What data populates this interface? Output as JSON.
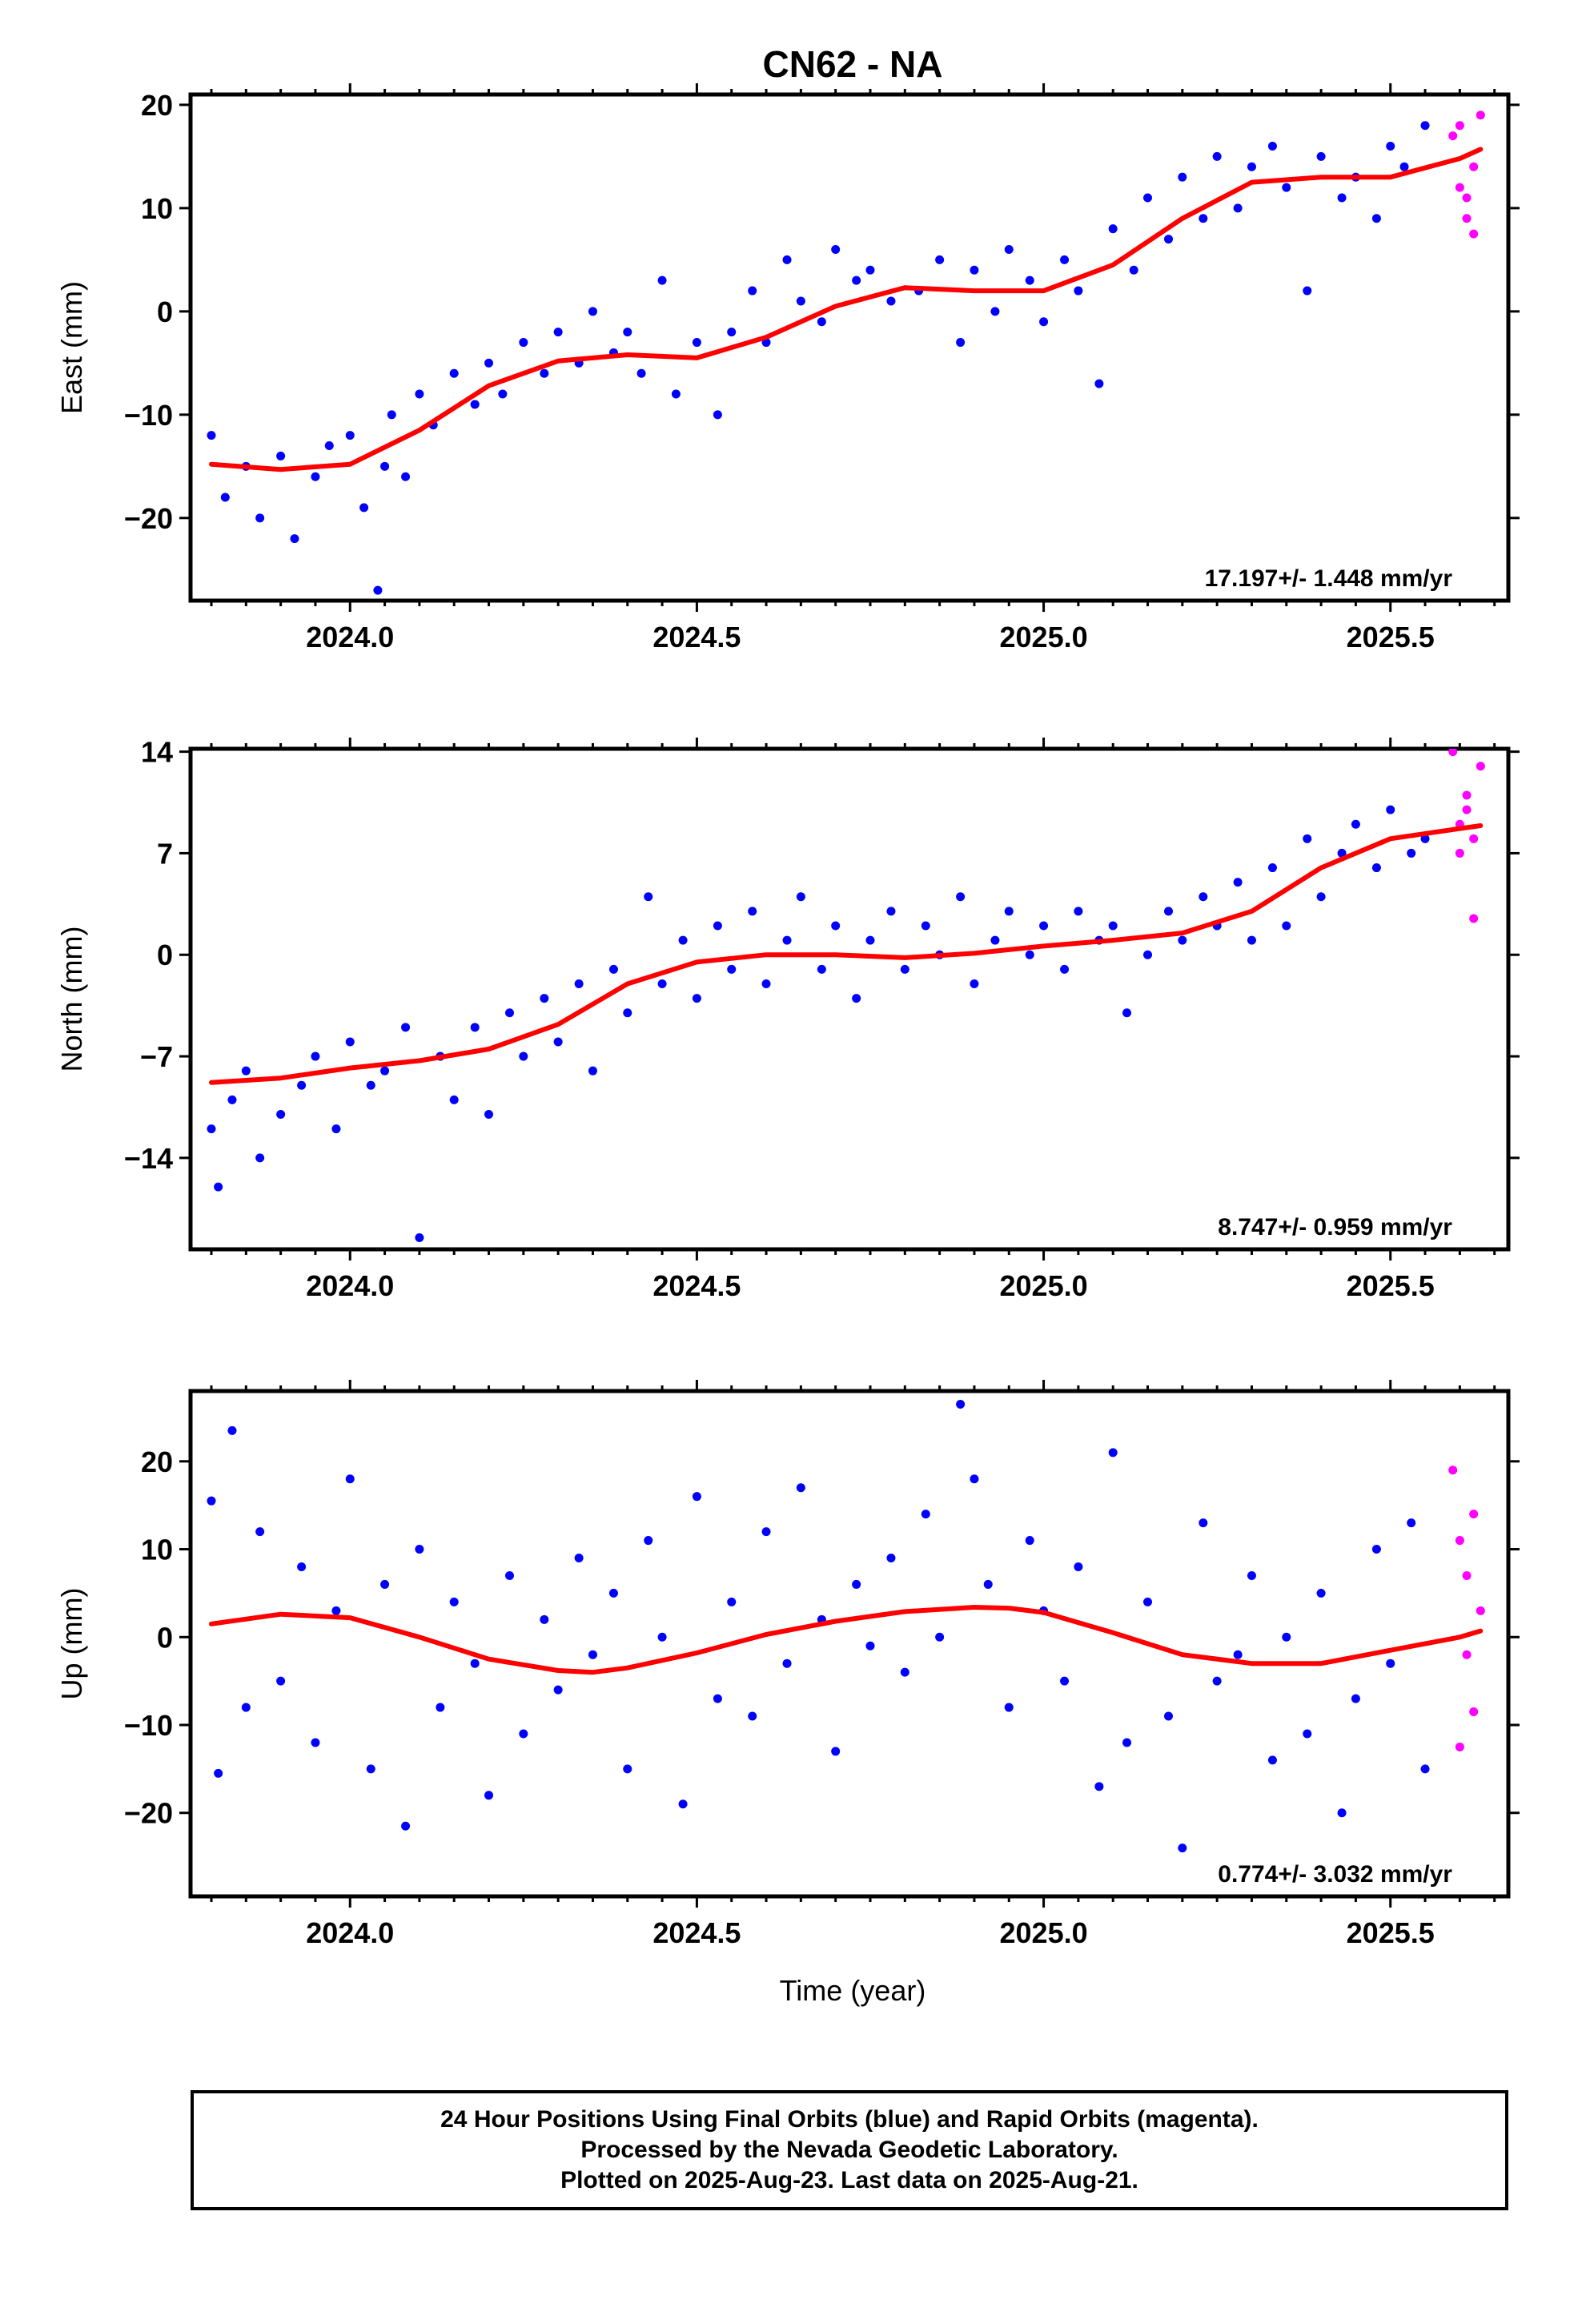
{
  "figure": {
    "title": "CN62 - NA",
    "xlabel": "Time (year)",
    "colors": {
      "final": "#0000ff",
      "rapid": "#ff00ff",
      "fit": "#ff0000",
      "frame": "#000000"
    }
  },
  "caption": {
    "line1": "24 Hour Positions Using Final Orbits (blue) and Rapid Orbits (magenta).",
    "line2": "Processed by the Nevada Geodetic Laboratory.",
    "line3": "Plotted on 2025-Aug-23. Last data on 2025-Aug-21."
  },
  "chart_data": [
    {
      "type": "scatter",
      "component": "east",
      "ylabel": "East (mm)",
      "xlim": [
        2023.77,
        2025.67
      ],
      "ylim": [
        -28,
        21
      ],
      "x_ticks": [
        2024.0,
        2024.5,
        2025.0,
        2025.5
      ],
      "x_tick_labels": [
        "2024.0",
        "2024.5",
        "2025.0",
        "2025.5"
      ],
      "y_ticks": [
        -20,
        -10,
        0,
        10,
        20
      ],
      "y_tick_labels": [
        "−20",
        "−10",
        "0",
        "10",
        "20"
      ],
      "rate_label": "17.197+/- 1.448 mm/yr",
      "grid": false,
      "fit": {
        "x": [
          2023.8,
          2023.9,
          2024.0,
          2024.1,
          2024.2,
          2024.3,
          2024.4,
          2024.5,
          2024.6,
          2024.7,
          2024.8,
          2024.9,
          2025.0,
          2025.1,
          2025.2,
          2025.3,
          2025.4,
          2025.5,
          2025.6,
          2025.63
        ],
        "y": [
          -14.8,
          -15.3,
          -14.8,
          -11.5,
          -7.2,
          -4.8,
          -4.2,
          -4.5,
          -2.5,
          0.5,
          2.3,
          2.0,
          2.0,
          4.5,
          9.0,
          12.5,
          13.0,
          13.0,
          14.8,
          15.7
        ]
      },
      "series": [
        {
          "name": "Final Orbits",
          "x": [
            2023.8,
            2023.82,
            2023.85,
            2023.87,
            2023.9,
            2023.92,
            2023.95,
            2023.97,
            2024.0,
            2024.02,
            2024.04,
            2024.05,
            2024.06,
            2024.08,
            2024.1,
            2024.12,
            2024.15,
            2024.18,
            2024.2,
            2024.22,
            2024.25,
            2024.28,
            2024.3,
            2024.33,
            2024.35,
            2024.38,
            2024.4,
            2024.42,
            2024.45,
            2024.47,
            2024.5,
            2024.53,
            2024.55,
            2024.58,
            2024.6,
            2024.63,
            2024.65,
            2024.68,
            2024.7,
            2024.73,
            2024.75,
            2024.78,
            2024.82,
            2024.85,
            2024.88,
            2024.9,
            2024.93,
            2024.95,
            2024.98,
            2025.0,
            2025.03,
            2025.05,
            2025.08,
            2025.1,
            2025.13,
            2025.15,
            2025.18,
            2025.2,
            2025.23,
            2025.25,
            2025.28,
            2025.3,
            2025.33,
            2025.35,
            2025.38,
            2025.4,
            2025.43,
            2025.45,
            2025.48,
            2025.5,
            2025.52,
            2025.55
          ],
          "y": [
            -12,
            -18,
            -15,
            -20,
            -14,
            -22,
            -16,
            -13,
            -12,
            -19,
            -27,
            -15,
            -10,
            -16,
            -8,
            -11,
            -6,
            -9,
            -5,
            -8,
            -3,
            -6,
            -2,
            -5,
            0,
            -4,
            -2,
            -6,
            3,
            -8,
            -3,
            -10,
            -2,
            2,
            -3,
            5,
            1,
            -1,
            6,
            3,
            4,
            1,
            2,
            5,
            -3,
            4,
            0,
            6,
            3,
            -1,
            5,
            2,
            -7,
            8,
            4,
            11,
            7,
            13,
            9,
            15,
            10,
            14,
            16,
            12,
            2,
            15,
            11,
            13,
            9,
            16,
            14,
            18
          ],
          "color": "#0000ff"
        },
        {
          "name": "Rapid Orbits",
          "x": [
            2025.59,
            2025.6,
            2025.61,
            2025.62,
            2025.63,
            2025.6,
            2025.62,
            2025.61
          ],
          "y": [
            17,
            12,
            9,
            14,
            19,
            18,
            7.5,
            11
          ],
          "color": "#ff00ff"
        }
      ]
    },
    {
      "type": "scatter",
      "component": "north",
      "ylabel": "North (mm)",
      "xlim": [
        2023.77,
        2025.67
      ],
      "ylim": [
        -20.3,
        14.2
      ],
      "x_ticks": [
        2024.0,
        2024.5,
        2025.0,
        2025.5
      ],
      "x_tick_labels": [
        "2024.0",
        "2024.5",
        "2025.0",
        "2025.5"
      ],
      "y_ticks": [
        -14,
        -7,
        0,
        7,
        14
      ],
      "y_tick_labels": [
        "−14",
        "−7",
        "0",
        "7",
        "14"
      ],
      "rate_label": "8.747+/- 0.959 mm/yr",
      "grid": false,
      "fit": {
        "x": [
          2023.8,
          2023.9,
          2024.0,
          2024.1,
          2024.2,
          2024.3,
          2024.4,
          2024.5,
          2024.6,
          2024.7,
          2024.8,
          2024.9,
          2025.0,
          2025.1,
          2025.2,
          2025.3,
          2025.4,
          2025.5,
          2025.6,
          2025.63
        ],
        "y": [
          -8.8,
          -8.5,
          -7.8,
          -7.3,
          -6.5,
          -4.8,
          -2.0,
          -0.5,
          0.0,
          0.0,
          -0.2,
          0.1,
          0.6,
          1.0,
          1.5,
          3.0,
          6.0,
          8.0,
          8.7,
          8.9
        ]
      },
      "series": [
        {
          "name": "Final Orbits",
          "x": [
            2023.8,
            2023.81,
            2023.83,
            2023.85,
            2023.87,
            2023.9,
            2023.93,
            2023.95,
            2023.98,
            2024.0,
            2024.03,
            2024.05,
            2024.08,
            2024.1,
            2024.13,
            2024.15,
            2024.18,
            2024.2,
            2024.23,
            2024.25,
            2024.28,
            2024.3,
            2024.33,
            2024.35,
            2024.38,
            2024.4,
            2024.43,
            2024.45,
            2024.48,
            2024.5,
            2024.53,
            2024.55,
            2024.58,
            2024.6,
            2024.63,
            2024.65,
            2024.68,
            2024.7,
            2024.73,
            2024.75,
            2024.78,
            2024.8,
            2024.83,
            2024.85,
            2024.88,
            2024.9,
            2024.93,
            2024.95,
            2024.98,
            2025.0,
            2025.03,
            2025.05,
            2025.08,
            2025.1,
            2025.12,
            2025.15,
            2025.18,
            2025.2,
            2025.23,
            2025.25,
            2025.28,
            2025.3,
            2025.33,
            2025.35,
            2025.38,
            2025.4,
            2025.43,
            2025.45,
            2025.48,
            2025.5,
            2025.53,
            2025.55
          ],
          "y": [
            -12,
            -16,
            -10,
            -8,
            -14,
            -11,
            -9,
            -7,
            -12,
            -6,
            -9,
            -8,
            -5,
            -19.5,
            -7,
            -10,
            -5,
            -11,
            -4,
            -7,
            -3,
            -6,
            -2,
            -8,
            -1,
            -4,
            4,
            -2,
            1,
            -3,
            2,
            -1,
            3,
            -2,
            1,
            4,
            -1,
            2,
            -3,
            1,
            3,
            -1,
            2,
            0,
            4,
            -2,
            1,
            3,
            0,
            2,
            -1,
            3,
            1,
            2,
            -4,
            0,
            3,
            1,
            4,
            2,
            5,
            1,
            6,
            2,
            8,
            4,
            7,
            9,
            6,
            10,
            7,
            8
          ],
          "color": "#0000ff"
        },
        {
          "name": "Rapid Orbits",
          "x": [
            2025.59,
            2025.6,
            2025.61,
            2025.62,
            2025.63,
            2025.6,
            2025.62,
            2025.61
          ],
          "y": [
            14,
            9,
            11,
            8,
            13,
            7,
            2.5,
            10
          ],
          "color": "#ff00ff"
        }
      ]
    },
    {
      "type": "scatter",
      "component": "up",
      "ylabel": "Up (mm)",
      "xlim": [
        2023.77,
        2025.67
      ],
      "ylim": [
        -29.5,
        28
      ],
      "x_ticks": [
        2024.0,
        2024.5,
        2025.0,
        2025.5
      ],
      "x_tick_labels": [
        "2024.0",
        "2024.5",
        "2025.0",
        "2025.5"
      ],
      "y_ticks": [
        -20,
        -10,
        0,
        10,
        20
      ],
      "y_tick_labels": [
        "−20",
        "−10",
        "0",
        "10",
        "20"
      ],
      "rate_label": "0.774+/- 3.032 mm/yr",
      "grid": false,
      "fit": {
        "x": [
          2023.8,
          2023.9,
          2024.0,
          2024.1,
          2024.2,
          2024.3,
          2024.35,
          2024.4,
          2024.5,
          2024.6,
          2024.7,
          2024.8,
          2024.9,
          2024.95,
          2025.0,
          2025.1,
          2025.2,
          2025.3,
          2025.4,
          2025.5,
          2025.6,
          2025.63
        ],
        "y": [
          1.5,
          2.6,
          2.2,
          0.0,
          -2.5,
          -3.8,
          -4.0,
          -3.5,
          -1.8,
          0.3,
          1.8,
          2.9,
          3.4,
          3.3,
          2.8,
          0.5,
          -2.0,
          -3.0,
          -3.0,
          -1.5,
          0.0,
          0.7
        ]
      },
      "series": [
        {
          "name": "Final Orbits",
          "x": [
            2023.8,
            2023.81,
            2023.83,
            2023.85,
            2023.87,
            2023.9,
            2023.93,
            2023.95,
            2023.98,
            2024.0,
            2024.03,
            2024.05,
            2024.08,
            2024.1,
            2024.13,
            2024.15,
            2024.18,
            2024.2,
            2024.23,
            2024.25,
            2024.28,
            2024.3,
            2024.33,
            2024.35,
            2024.38,
            2024.4,
            2024.43,
            2024.45,
            2024.48,
            2024.5,
            2024.53,
            2024.55,
            2024.58,
            2024.6,
            2024.63,
            2024.65,
            2024.68,
            2024.7,
            2024.73,
            2024.75,
            2024.78,
            2024.8,
            2024.83,
            2024.85,
            2024.88,
            2024.9,
            2024.92,
            2024.95,
            2024.98,
            2025.0,
            2025.03,
            2025.05,
            2025.08,
            2025.1,
            2025.12,
            2025.15,
            2025.18,
            2025.2,
            2025.23,
            2025.25,
            2025.28,
            2025.3,
            2025.33,
            2025.35,
            2025.38,
            2025.4,
            2025.43,
            2025.45,
            2025.48,
            2025.5,
            2025.53,
            2025.55
          ],
          "y": [
            15.5,
            -15.5,
            23.5,
            -8,
            12,
            -5,
            8,
            -12,
            3,
            18,
            -15,
            6,
            -21.5,
            10,
            -8,
            4,
            -3,
            -18,
            7,
            -11,
            2,
            -6,
            9,
            -2,
            5,
            -15,
            11,
            0,
            -19,
            16,
            -7,
            4,
            -9,
            12,
            -3,
            17,
            2,
            -13,
            6,
            -1,
            9,
            -4,
            14,
            0,
            26.5,
            18,
            6,
            -8,
            11,
            3,
            -5,
            8,
            -17,
            21,
            -12,
            4,
            -9,
            -24,
            13,
            -5,
            -2,
            7,
            -14,
            0,
            -11,
            5,
            -20,
            -7,
            10,
            -3,
            13,
            -15
          ],
          "color": "#0000ff"
        },
        {
          "name": "Rapid Orbits",
          "x": [
            2025.59,
            2025.6,
            2025.61,
            2025.62,
            2025.63,
            2025.6,
            2025.62,
            2025.61
          ],
          "y": [
            19,
            11,
            7,
            14,
            3,
            -12.5,
            -8.5,
            -2
          ],
          "color": "#ff00ff"
        }
      ]
    }
  ]
}
